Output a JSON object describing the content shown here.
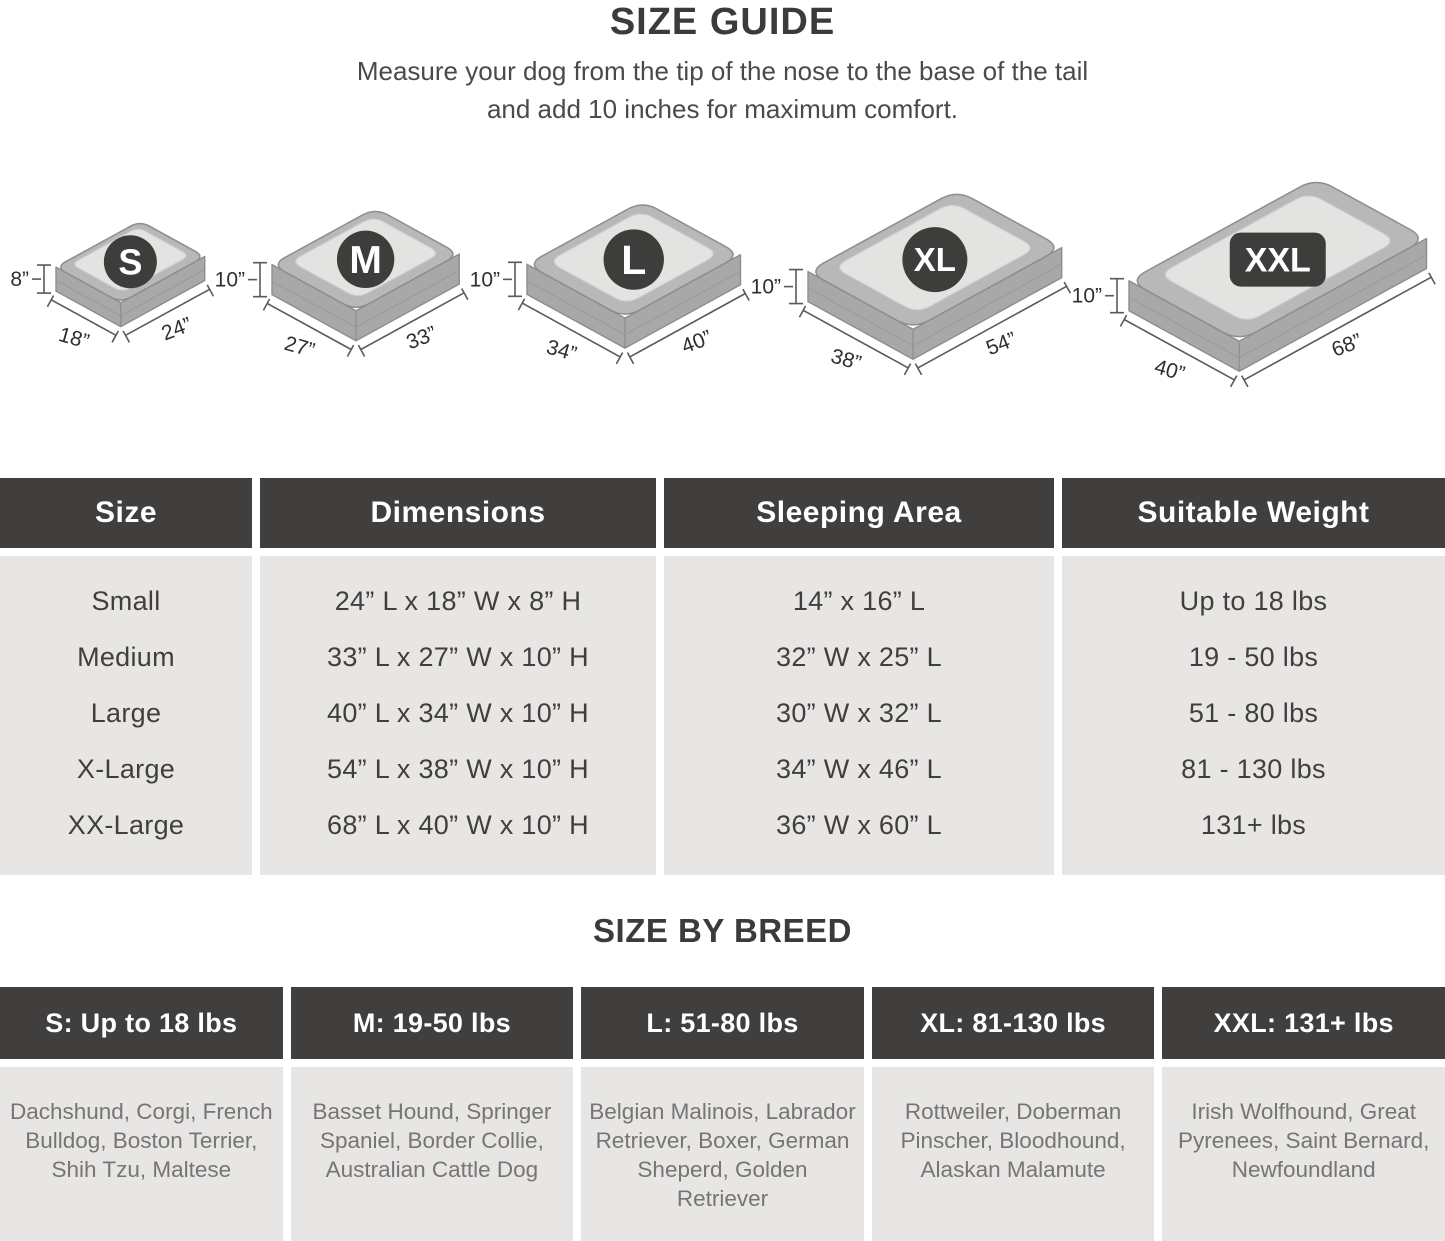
{
  "page": {
    "title": "SIZE GUIDE",
    "subtitle_line1": "Measure your dog from the tip of the nose to the base of the tail",
    "subtitle_line2": "and add 10 inches for maximum comfort."
  },
  "beds": [
    {
      "label": "S",
      "height": "8”",
      "width": "18”",
      "length": "24”"
    },
    {
      "label": "M",
      "height": "10”",
      "width": "27”",
      "length": "33”"
    },
    {
      "label": "L",
      "height": "10”",
      "width": "34”",
      "length": "40”"
    },
    {
      "label": "XL",
      "height": "10”",
      "width": "38”",
      "length": "54”"
    },
    {
      "label": "XXL",
      "height": "10”",
      "width": "40”",
      "length": "68”"
    }
  ],
  "size_table": {
    "columns": [
      "Size",
      "Dimensions",
      "Sleeping Area",
      "Suitable Weight"
    ],
    "rows": [
      [
        "Small",
        "24” L x 18” W x 8” H",
        "14” x 16” L",
        "Up to 18 lbs"
      ],
      [
        "Medium",
        "33” L x 27” W x 10” H",
        "32” W x 25” L",
        "19 - 50 lbs"
      ],
      [
        "Large",
        "40” L x 34” W x 10” H",
        "30” W x 32” L",
        "51 - 80 lbs"
      ],
      [
        "X-Large",
        "54” L x 38” W x 10” H",
        "34” W x 46” L",
        "81 - 130 lbs"
      ],
      [
        "XX-Large",
        "68” L x 40” W x 10” H",
        "36” W x 60” L",
        "131+ lbs"
      ]
    ]
  },
  "breed_section": {
    "title": "SIZE BY BREED",
    "columns": [
      {
        "header": "S: Up to 18 lbs",
        "breeds": "Dachshund, Corgi, French Bulldog, Boston Terrier, Shih Tzu, Maltese"
      },
      {
        "header": "M: 19-50 lbs",
        "breeds": "Basset Hound, Springer Spaniel, Border Collie, Australian Cattle Dog"
      },
      {
        "header": "L: 51-80 lbs",
        "breeds": "Belgian Malinois, Labrador Retriever, Boxer, German Sheperd, Golden Retriever"
      },
      {
        "header": "XL: 81-130 lbs",
        "breeds": "Rottweiler, Doberman Pinscher, Bloodhound, Alaskan Malamute"
      },
      {
        "header": "XXL: 131+ lbs",
        "breeds": "Irish Wolfhound, Great Pyrenees, Saint Bernard, Newfoundland"
      }
    ]
  },
  "colors": {
    "header_bg": "#403f3d",
    "cell_bg": "#e7e6e5",
    "title_text": "#3b3b39",
    "body_text": "#403f3d",
    "muted_text": "#767573",
    "badge_bg": "#3d3d3b",
    "bed_rim": "#b8b8b8",
    "bed_side": "#a8a8a8",
    "bed_inner": "#e3e3e2",
    "bed_outline": "#8d8d8d",
    "dim_line": "#5a5a58",
    "dim_text": "#2f2f2d"
  }
}
